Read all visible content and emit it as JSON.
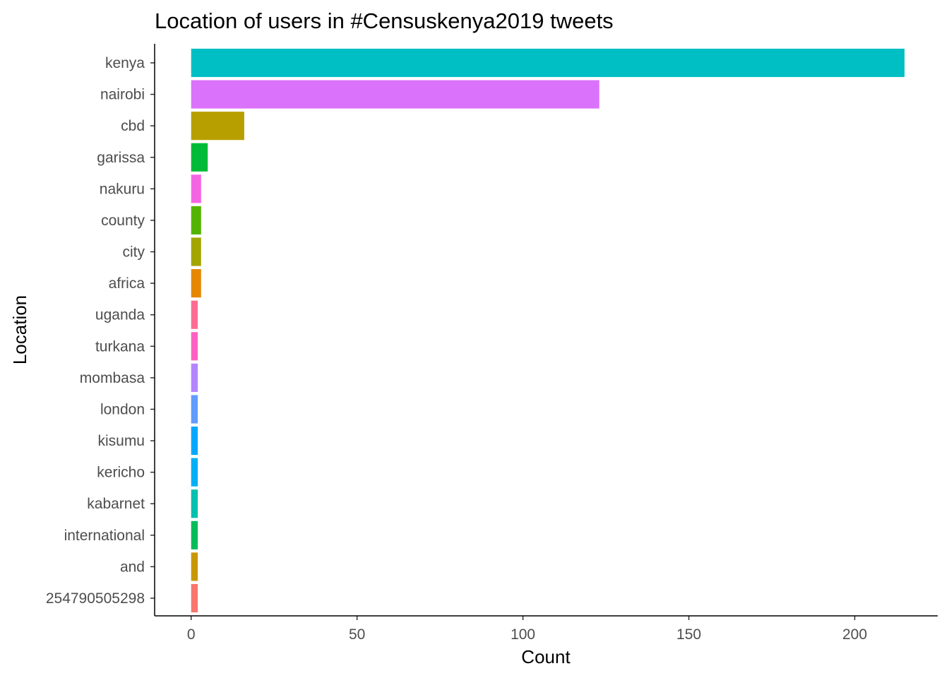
{
  "chart_data": {
    "type": "bar",
    "orientation": "horizontal",
    "title": "Location of users in #Censuskenya2019 tweets",
    "xlabel": "Count",
    "ylabel": "Location",
    "xlim": [
      -11,
      225
    ],
    "xticks": [
      0,
      50,
      100,
      150,
      200
    ],
    "grid": false,
    "legend": "none",
    "categories": [
      "kenya",
      "nairobi",
      "cbd",
      "garissa",
      "nakuru",
      "county",
      "city",
      "africa",
      "uganda",
      "turkana",
      "mombasa",
      "london",
      "kisumu",
      "kericho",
      "kabarnet",
      "international",
      "and",
      "254790505298"
    ],
    "values": [
      215,
      123,
      16,
      5,
      3,
      3,
      3,
      3,
      2,
      2,
      2,
      2,
      2,
      2,
      2,
      2,
      2,
      2
    ],
    "colors": [
      "#00BFC4",
      "#DB72FB",
      "#B79F00",
      "#00BA38",
      "#F564E3",
      "#53B400",
      "#A3A500",
      "#E58700",
      "#FF6C91",
      "#FF61C3",
      "#B385FF",
      "#619CFF",
      "#00A9FF",
      "#00B0F6",
      "#00C0AF",
      "#00BC59",
      "#C99800",
      "#F8766D"
    ]
  }
}
